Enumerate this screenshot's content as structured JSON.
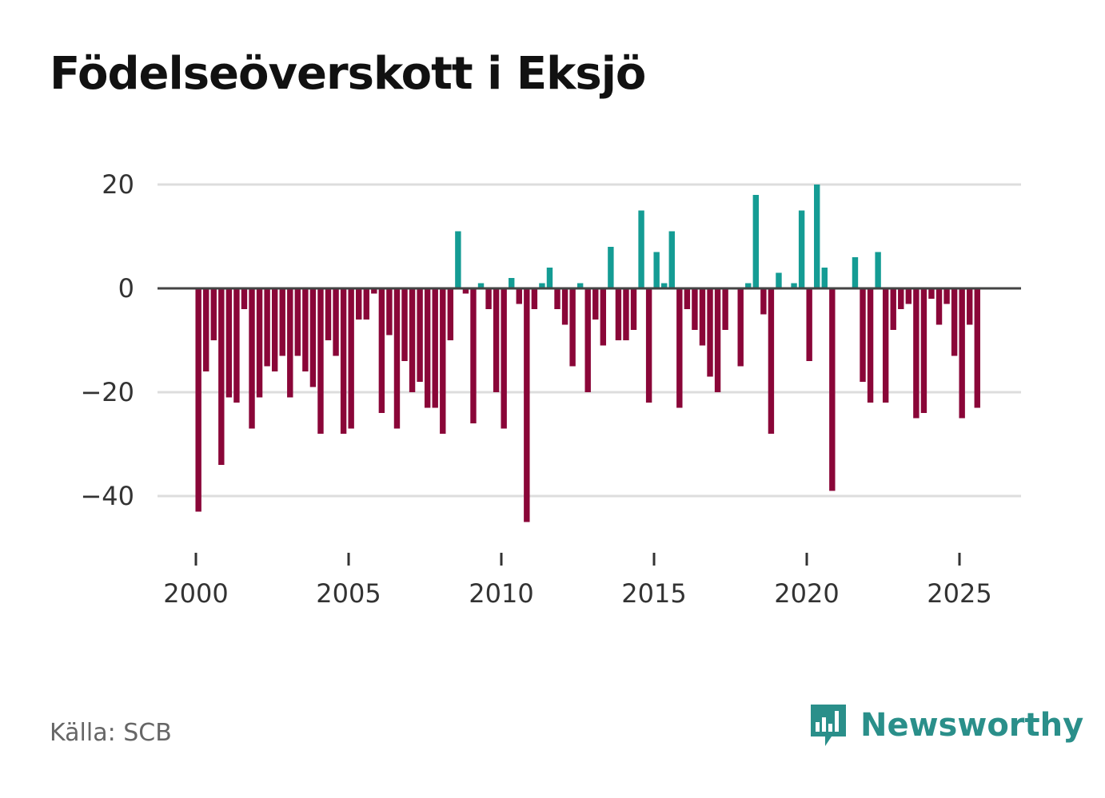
{
  "title": "Födelseöverskott i Eksjö",
  "source": "Källa: SCB",
  "brand": "Newsworthy",
  "colors": {
    "positive": "#149c94",
    "negative": "#8a0638",
    "grid": "#dddddd",
    "zero": "#444444",
    "brand": "#2a8f8a"
  },
  "chart_data": {
    "type": "bar",
    "title": "Födelseöverskott i Eksjö",
    "xlabel": "",
    "ylabel": "",
    "ylim": [
      -50,
      23
    ],
    "xlim": [
      1999.6,
      2026.3
    ],
    "y_ticks": [
      20,
      0,
      -20,
      -40
    ],
    "y_tick_labels": [
      "20",
      "0",
      "−20",
      "−40"
    ],
    "x_ticks": [
      2000,
      2005,
      2010,
      2015,
      2020,
      2025
    ],
    "x_tick_labels": [
      "2000",
      "2005",
      "2010",
      "2015",
      "2020",
      "2025"
    ],
    "x_start": 2000.083,
    "x_step": 0.25,
    "values": [
      -43,
      -16,
      -10,
      -34,
      -21,
      -22,
      -4,
      -27,
      -21,
      -15,
      -16,
      -13,
      -21,
      -13,
      -16,
      -19,
      -28,
      -10,
      -13,
      -28,
      -27,
      -6,
      -6,
      -1,
      -24,
      -9,
      -27,
      -14,
      -20,
      -18,
      -23,
      -23,
      -28,
      -10,
      11,
      -1,
      -26,
      1,
      -4,
      -20,
      -27,
      2,
      -3,
      -45,
      -4,
      1,
      4,
      -4,
      -7,
      -15,
      1,
      -20,
      -6,
      -11,
      8,
      -10,
      -10,
      -8,
      15,
      -22,
      7,
      1,
      11,
      -23,
      -4,
      -8,
      -11,
      -17,
      -20,
      -8,
      0,
      -15,
      1,
      18,
      -5,
      -28,
      3,
      0,
      1,
      15,
      -14,
      20,
      4,
      -39,
      0,
      0,
      6,
      -18,
      -22,
      7,
      -22,
      -8,
      -4,
      -3,
      -25,
      -24,
      -2,
      -7,
      -3,
      -13,
      -25,
      -7,
      -23
    ]
  }
}
